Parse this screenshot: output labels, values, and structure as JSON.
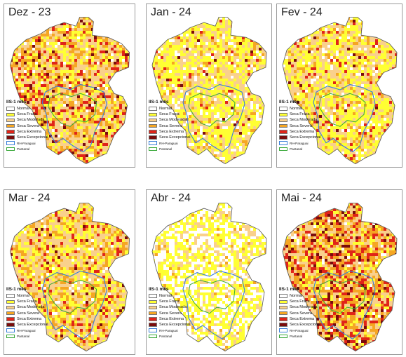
{
  "panels": [
    {
      "title": "Dez - 23",
      "weights": [
        0.04,
        0.2,
        0.36,
        0.24,
        0.12,
        0.04
      ],
      "seed": 11
    },
    {
      "title": "Jan - 24",
      "weights": [
        0.08,
        0.46,
        0.34,
        0.08,
        0.03,
        0.01
      ],
      "seed": 23
    },
    {
      "title": "Fev - 24",
      "weights": [
        0.06,
        0.42,
        0.34,
        0.12,
        0.05,
        0.01
      ],
      "seed": 37
    },
    {
      "title": "Mar - 24",
      "weights": [
        0.04,
        0.28,
        0.38,
        0.2,
        0.08,
        0.02
      ],
      "seed": 41
    },
    {
      "title": "Abr - 24",
      "weights": [
        0.38,
        0.42,
        0.16,
        0.04,
        0.0,
        0.0
      ],
      "seed": 53
    },
    {
      "title": "Mai - 24",
      "weights": [
        0.02,
        0.14,
        0.28,
        0.28,
        0.2,
        0.08
      ],
      "seed": 67
    }
  ],
  "legend": {
    "title": "IIS-1 mês",
    "classes": [
      {
        "label": "Normal",
        "color": "#ffffff"
      },
      {
        "label": "Seca Fraca",
        "color": "#ffff33"
      },
      {
        "label": "Seca Moderada",
        "color": "#f9d08c"
      },
      {
        "label": "Seca Severa",
        "color": "#f5a623"
      },
      {
        "label": "Seca Extrema",
        "color": "#e02418"
      },
      {
        "label": "Seca Excepcional",
        "color": "#7a0c0c"
      }
    ],
    "boundaries": [
      {
        "label": "RH-Paraguai",
        "color": "#3a7fd8"
      },
      {
        "label": "Pantanal",
        "color": "#39a83a"
      }
    ]
  }
}
